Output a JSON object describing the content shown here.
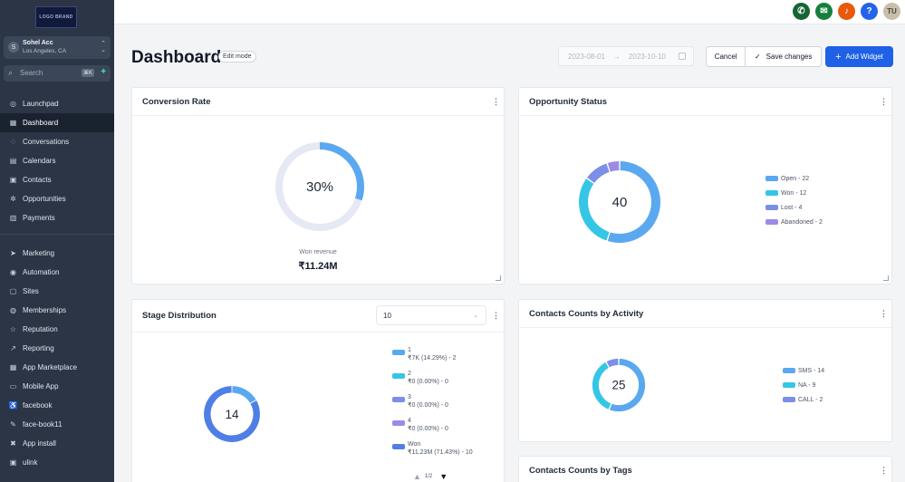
{
  "sidebar": {
    "logo_text": "LOGO BRAND",
    "account": {
      "avatar": "S",
      "name": "Sohel Acc",
      "location": "Los Angeles, CA"
    },
    "search": {
      "placeholder": "Search",
      "shortcut": "⌘K"
    },
    "items_top": [
      {
        "label": "Launchpad",
        "icon": "◎",
        "icon_name": "rocket-icon"
      },
      {
        "label": "Dashboard",
        "icon": "▦",
        "icon_name": "grid-icon",
        "active": true
      },
      {
        "label": "Conversations",
        "icon": "◌",
        "icon_name": "chat-icon"
      },
      {
        "label": "Calendars",
        "icon": "▤",
        "icon_name": "calendar-icon"
      },
      {
        "label": "Contacts",
        "icon": "▣",
        "icon_name": "contacts-icon"
      },
      {
        "label": "Opportunities",
        "icon": "✲",
        "icon_name": "opportunities-icon"
      },
      {
        "label": "Payments",
        "icon": "▥",
        "icon_name": "payments-icon"
      }
    ],
    "items_bottom": [
      {
        "label": "Marketing",
        "icon": "➤",
        "icon_name": "send-icon"
      },
      {
        "label": "Automation",
        "icon": "◉",
        "icon_name": "automation-icon"
      },
      {
        "label": "Sites",
        "icon": "▢",
        "icon_name": "sites-icon"
      },
      {
        "label": "Memberships",
        "icon": "◍",
        "icon_name": "memberships-icon"
      },
      {
        "label": "Reputation",
        "icon": "☆",
        "icon_name": "star-icon"
      },
      {
        "label": "Reporting",
        "icon": "↗",
        "icon_name": "reporting-icon"
      },
      {
        "label": "App Marketplace",
        "icon": "▦",
        "icon_name": "marketplace-icon"
      },
      {
        "label": "Mobile App",
        "icon": "▭",
        "icon_name": "mobile-icon"
      },
      {
        "label": "facebook",
        "icon": "♿",
        "icon_name": "accessibility-icon"
      },
      {
        "label": "face-book11",
        "icon": "✎",
        "icon_name": "wrench-icon"
      },
      {
        "label": "App install",
        "icon": "✖",
        "icon_name": "app-install-icon"
      },
      {
        "label": "ulink",
        "icon": "▣",
        "icon_name": "link-icon"
      }
    ]
  },
  "topbar": {
    "icons": [
      {
        "name": "phone-icon",
        "glyph": "✆",
        "color": "#166534"
      },
      {
        "name": "megaphone-icon",
        "glyph": "✉",
        "color": "#15803d"
      },
      {
        "name": "bell-icon",
        "glyph": "♪",
        "color": "#ea580c"
      },
      {
        "name": "help-icon",
        "glyph": "?",
        "color": "#2563eb"
      }
    ],
    "avatar": "TU"
  },
  "header": {
    "title": "Dashboard",
    "edit_mode": "Edit mode",
    "date_start": "2023-08-01",
    "date_arrow": "→",
    "date_end": "2023-10-10",
    "cancel": "Cancel",
    "save": "Save changes",
    "add_widget": "Add Widget"
  },
  "widgets": {
    "conversion": {
      "title": "Conversion Rate",
      "value_label": "30%",
      "fraction": 0.3,
      "caption": "Won revenue",
      "amount": "₹11.24M",
      "color": "#5aa8f0",
      "track": "#e4e9f4"
    },
    "opportunity": {
      "title": "Opportunity Status",
      "total": "40",
      "slices": [
        {
          "label": "Open - 22",
          "value": 22,
          "color": "#5aa8f0"
        },
        {
          "label": "Won - 12",
          "value": 12,
          "color": "#35c6e6"
        },
        {
          "label": "Lost - 4",
          "value": 4,
          "color": "#7b8fe8"
        },
        {
          "label": "Abandoned - 2",
          "value": 2,
          "color": "#9b8ae8"
        }
      ]
    },
    "stage": {
      "title": "Stage Distribution",
      "select_value": "10",
      "total": "14",
      "pager": "1/2",
      "slices": [
        {
          "line1": "1",
          "line2": "₹7K (14.29%) - 2",
          "value": 2,
          "color": "#5aa8f0"
        },
        {
          "line1": "2",
          "line2": "₹0 (0.00%) - 0",
          "value": 0,
          "color": "#35c6e6"
        },
        {
          "line1": "3",
          "line2": "₹0 (0.00%) - 0",
          "value": 0,
          "color": "#7b8fe8"
        },
        {
          "line1": "4",
          "line2": "₹0 (0.00%) - 0",
          "value": 0,
          "color": "#9b8ae8"
        },
        {
          "line1": "Won",
          "line2": "₹11.23M (71.43%) - 10",
          "value": 10,
          "color": "#4f7fe6"
        }
      ]
    },
    "activity": {
      "title": "Contacts Counts by Activity",
      "total": "25",
      "slices": [
        {
          "label": "SMS - 14",
          "value": 14,
          "color": "#5aa8f0"
        },
        {
          "label": "NA - 9",
          "value": 9,
          "color": "#35c6e6"
        },
        {
          "label": "CALL - 2",
          "value": 2,
          "color": "#7b8fe8"
        }
      ]
    },
    "tags": {
      "title": "Contacts Counts by Tags"
    }
  }
}
